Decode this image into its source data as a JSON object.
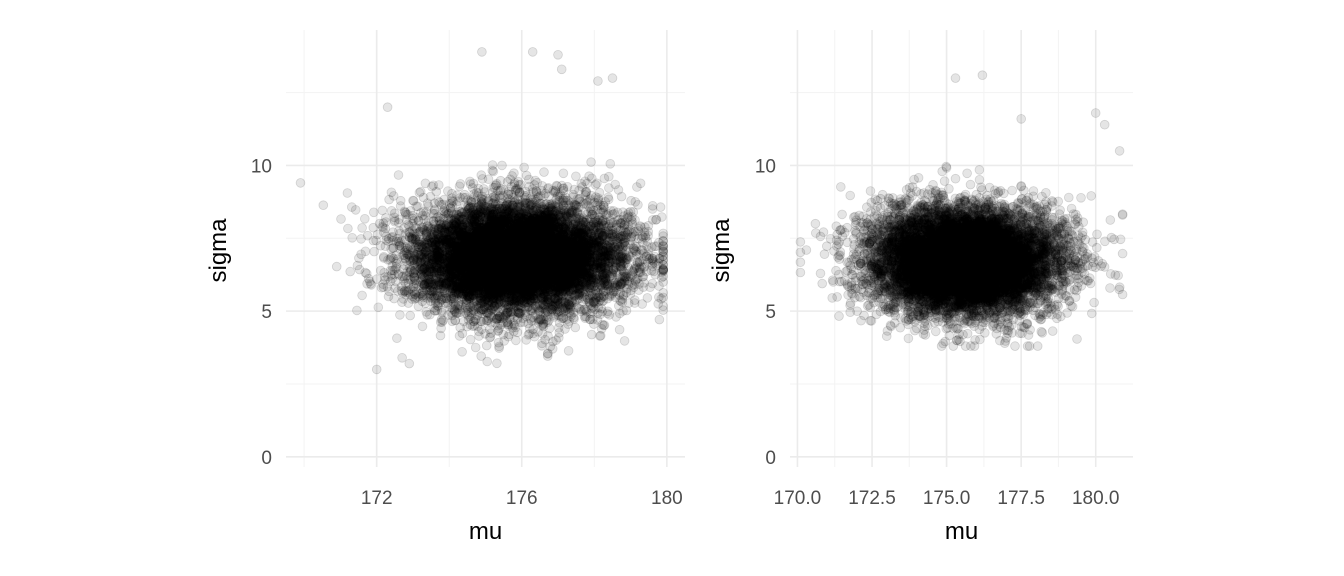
{
  "chart_data": [
    {
      "type": "scatter",
      "xlabel": "mu",
      "ylabel": "sigma",
      "xlim": [
        169.5,
        180.5
      ],
      "ylim": [
        -0.35,
        14.65
      ],
      "x_ticks": [
        172,
        176,
        180
      ],
      "x_tick_labels": [
        "172",
        "176",
        "180"
      ],
      "x_minor_ticks": [
        170,
        174,
        178
      ],
      "y_ticks": [
        0,
        5,
        10
      ],
      "y_tick_labels": [
        "0",
        "5",
        "10"
      ],
      "y_minor_ticks": [
        2.5,
        7.5,
        12.5
      ],
      "grid": true,
      "point_color": "#000000",
      "point_alpha": 0.1,
      "n_points": 10000,
      "distribution": {
        "mu_mean": 175.9,
        "mu_sd": 1.45,
        "sigma_mean": 6.85,
        "sigma_sd": 0.95,
        "mu_range": [
          169.8,
          179.9
        ],
        "sigma_range": [
          3.0,
          14.0
        ]
      },
      "points": [
        {
          "x": 172.7,
          "y": 3.4
        },
        {
          "x": 172.0,
          "y": 3.0
        },
        {
          "x": 172.9,
          "y": 3.2
        },
        {
          "x": 174.9,
          "y": 13.9
        },
        {
          "x": 176.3,
          "y": 13.9
        },
        {
          "x": 177.0,
          "y": 13.8
        },
        {
          "x": 177.1,
          "y": 13.3
        },
        {
          "x": 178.5,
          "y": 13.0
        },
        {
          "x": 169.9,
          "y": 9.4
        },
        {
          "x": 179.4,
          "y": 7.6
        },
        {
          "x": 172.3,
          "y": 12.0
        },
        {
          "x": 178.1,
          "y": 12.9
        }
      ]
    },
    {
      "type": "scatter",
      "xlabel": "mu",
      "ylabel": "sigma",
      "xlim": [
        169.75,
        181.25
      ],
      "ylim": [
        -0.35,
        14.65
      ],
      "x_ticks": [
        170.0,
        172.5,
        175.0,
        177.5,
        180.0
      ],
      "x_tick_labels": [
        "170.0",
        "172.5",
        "175.0",
        "177.5",
        "180.0"
      ],
      "x_minor_ticks": [
        171.25,
        173.75,
        176.25,
        178.75
      ],
      "y_ticks": [
        0,
        5,
        10
      ],
      "y_tick_labels": [
        "0",
        "5",
        "10"
      ],
      "y_minor_ticks": [
        2.5,
        7.5,
        12.5
      ],
      "grid": true,
      "point_color": "#000000",
      "point_alpha": 0.1,
      "n_points": 10000,
      "distribution": {
        "mu_mean": 175.6,
        "mu_sd": 1.55,
        "sigma_mean": 6.75,
        "sigma_sd": 0.9,
        "mu_range": [
          170.1,
          180.9
        ],
        "sigma_range": [
          3.8,
          13.1
        ]
      },
      "points": [
        {
          "x": 176.2,
          "y": 13.1
        },
        {
          "x": 175.3,
          "y": 13.0
        },
        {
          "x": 180.0,
          "y": 11.8
        },
        {
          "x": 180.3,
          "y": 11.4
        },
        {
          "x": 180.8,
          "y": 10.5
        },
        {
          "x": 170.3,
          "y": 7.1
        },
        {
          "x": 170.6,
          "y": 8.0
        },
        {
          "x": 180.9,
          "y": 8.3
        },
        {
          "x": 177.5,
          "y": 11.6
        }
      ]
    }
  ]
}
